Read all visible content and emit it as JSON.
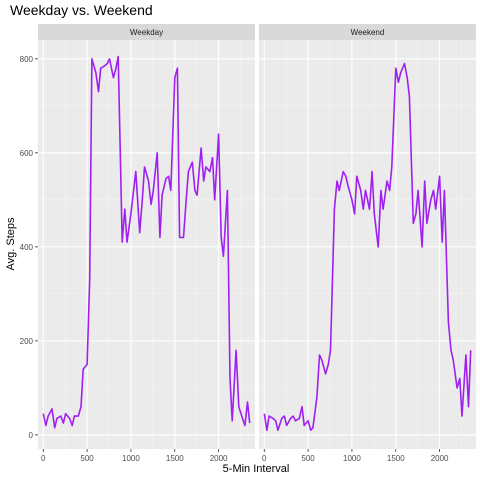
{
  "chart_data": {
    "type": "line",
    "title": "Weekday vs. Weekend",
    "xlabel": "5-Min Interval",
    "ylabel": "Avg. Steps",
    "xlim": [
      -60,
      2415
    ],
    "ylim": [
      -30,
      840
    ],
    "x_ticks": [
      0,
      500,
      1000,
      1500,
      2000
    ],
    "y_ticks": [
      0,
      200,
      400,
      600,
      800
    ],
    "grid": true,
    "line_color": "#A020F0",
    "panel_background": "#EBEBEB",
    "strip_background": "#D9D9D9",
    "series": [
      {
        "name": "Weekday",
        "x": [
          0,
          30,
          55,
          100,
          130,
          155,
          200,
          230,
          255,
          300,
          330,
          355,
          400,
          430,
          455,
          500,
          530,
          555,
          600,
          630,
          655,
          700,
          730,
          755,
          800,
          830,
          855,
          900,
          930,
          955,
          1000,
          1030,
          1055,
          1100,
          1130,
          1155,
          1200,
          1230,
          1255,
          1300,
          1330,
          1355,
          1400,
          1430,
          1455,
          1500,
          1530,
          1555,
          1600,
          1630,
          1655,
          1700,
          1730,
          1755,
          1800,
          1830,
          1855,
          1900,
          1930,
          1955,
          2000,
          2030,
          2055,
          2100,
          2130,
          2155,
          2200,
          2230,
          2255,
          2300,
          2330,
          2355
        ],
        "y": [
          45,
          20,
          40,
          55,
          15,
          35,
          40,
          25,
          45,
          35,
          20,
          40,
          40,
          60,
          140,
          150,
          330,
          800,
          770,
          730,
          780,
          785,
          790,
          800,
          760,
          780,
          805,
          410,
          480,
          410,
          470,
          520,
          560,
          430,
          500,
          570,
          540,
          490,
          520,
          600,
          420,
          510,
          545,
          550,
          520,
          760,
          780,
          420,
          420,
          500,
          560,
          580,
          520,
          510,
          610,
          540,
          570,
          560,
          590,
          500,
          640,
          420,
          380,
          520,
          120,
          30,
          180,
          60,
          45,
          20,
          70,
          25
        ]
      },
      {
        "name": "Weekend",
        "x": [
          0,
          30,
          55,
          100,
          130,
          155,
          200,
          230,
          255,
          300,
          330,
          355,
          400,
          430,
          455,
          500,
          530,
          555,
          600,
          630,
          655,
          700,
          730,
          755,
          800,
          830,
          855,
          900,
          930,
          955,
          1000,
          1030,
          1055,
          1100,
          1130,
          1155,
          1200,
          1230,
          1255,
          1300,
          1330,
          1355,
          1400,
          1430,
          1455,
          1500,
          1530,
          1555,
          1600,
          1630,
          1655,
          1700,
          1730,
          1755,
          1800,
          1830,
          1855,
          1900,
          1930,
          1955,
          2000,
          2030,
          2055,
          2100,
          2130,
          2155,
          2200,
          2230,
          2255,
          2300,
          2330,
          2355
        ],
        "y": [
          45,
          10,
          40,
          35,
          30,
          10,
          35,
          40,
          20,
          35,
          40,
          30,
          35,
          60,
          20,
          30,
          10,
          15,
          80,
          170,
          160,
          130,
          150,
          180,
          480,
          540,
          520,
          560,
          550,
          530,
          500,
          470,
          550,
          520,
          480,
          520,
          480,
          560,
          470,
          400,
          520,
          480,
          540,
          520,
          570,
          780,
          750,
          770,
          790,
          760,
          720,
          450,
          470,
          520,
          400,
          540,
          450,
          500,
          520,
          480,
          550,
          410,
          520,
          240,
          180,
          160,
          100,
          120,
          40,
          170,
          60,
          180
        ]
      }
    ]
  }
}
